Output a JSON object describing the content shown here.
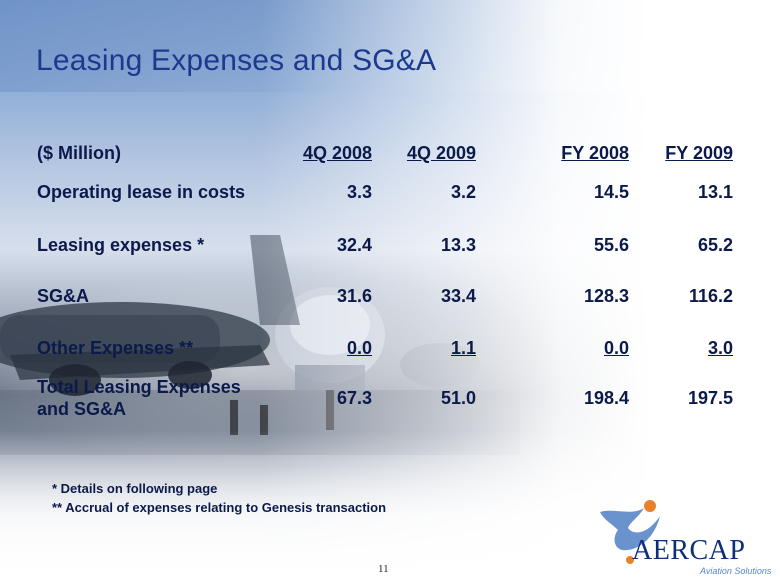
{
  "slide": {
    "title": "Leasing Expenses and SG&A",
    "page_number": "11"
  },
  "table": {
    "header": {
      "label": "($ Million)",
      "columns": [
        "4Q 2008",
        "4Q 2009",
        "FY 2008",
        "FY 2009"
      ]
    },
    "rows": [
      {
        "label": "Operating lease in costs",
        "values": [
          "3.3",
          "3.2",
          "14.5",
          "13.1"
        ]
      },
      {
        "label": "Leasing expenses *",
        "values": [
          "32.4",
          "13.3",
          "55.6",
          "65.2"
        ]
      },
      {
        "label": "SG&A",
        "values": [
          "31.6",
          "33.4",
          "128.3",
          "116.2"
        ]
      },
      {
        "label": "Other Expenses **",
        "values": [
          "0.0",
          "1.1",
          "0.0",
          "3.0"
        ]
      },
      {
        "label_line1": "Total Leasing Expenses",
        "label_line2": "and SG&A",
        "values": [
          "67.3",
          "51.0",
          "198.4",
          "197.5"
        ]
      }
    ]
  },
  "footnotes": [
    "* Details on following page",
    "** Accrual of expenses relating to Genesis transaction"
  ],
  "logo": {
    "name": "AERCAP",
    "tagline": "Aviation Solutions"
  },
  "colors": {
    "title": "#1b3a8f",
    "text": "#0b1a4a",
    "logo_blue": "#0d2f7a",
    "logo_orange": "#e8822a"
  }
}
